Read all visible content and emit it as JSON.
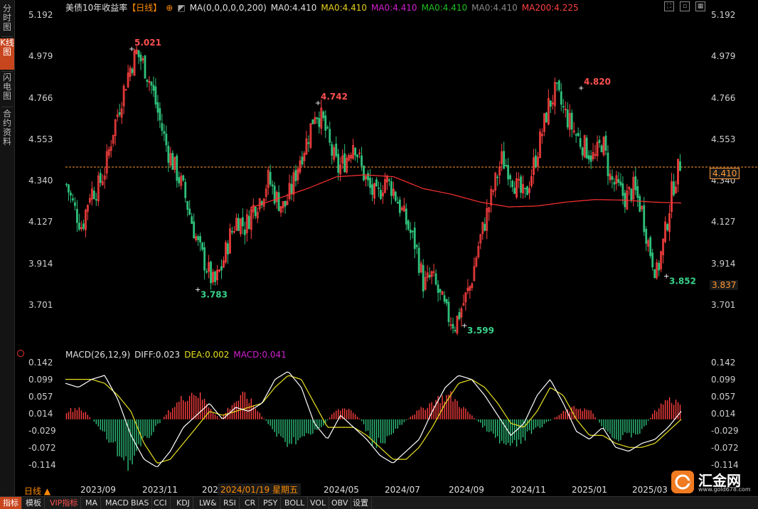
{
  "sidebar": {
    "tabs": [
      "分时图",
      "K线图",
      "闪电图",
      "合约资料"
    ],
    "active": 1
  },
  "header": {
    "title": "美债10年收益率",
    "period": "【日线】",
    "ma_params": "MA(0,0,0,0,0,200)",
    "ma_values": [
      {
        "label": "MA0:4.410",
        "color": "#e0e0e0"
      },
      {
        "label": "MA0:4.410",
        "color": "#e8d020"
      },
      {
        "label": "MA0:4.410",
        "color": "#d020d0"
      },
      {
        "label": "MA0:4.410",
        "color": "#20c020"
      },
      {
        "label": "MA0:4.410",
        "color": "#888888"
      },
      {
        "label": "MA200:4.225",
        "color": "#ff4040"
      }
    ]
  },
  "price_tags": {
    "current": "4.410",
    "cursor": "3.837"
  },
  "macd_header": {
    "params": "MACD(26,12,9)",
    "diff": "DIFF:0.023",
    "dea": "DEA:0.002",
    "macd": "MACD:0.041"
  },
  "cursor_date": "2024/01/19 星期五",
  "period_button": "日线 ▲",
  "tabs": [
    "指标",
    "模板",
    "VIP指标",
    "MA",
    "MACD",
    "BIAS",
    "CCI",
    "KDJ",
    "LW&",
    "RSI",
    "CR",
    "PSY",
    "BOLL",
    "VOL",
    "OBV",
    "设置"
  ],
  "logo": {
    "text": "汇金网",
    "url": "www.gold678.com"
  },
  "colors": {
    "up": "#ff4040",
    "down": "#2ec07a",
    "ma200": "#ff3030",
    "diff": "#ffffff",
    "dea": "#e8e020",
    "current_line": "#ff9933"
  },
  "chart_data": [
    {
      "type": "candlestick",
      "title": "美债10年收益率",
      "y_ticks": [
        "5.192",
        "4.979",
        "4.766",
        "4.553",
        "4.340",
        "4.127",
        "3.914",
        "3.701"
      ],
      "ylim": [
        3.59,
        5.2
      ],
      "x_ticks": [
        "2023/09",
        "2023/11",
        "2024/01",
        "2024/05",
        "2024/07",
        "2024/09",
        "2024/11",
        "2025/01",
        "2025/03"
      ],
      "annotations": [
        {
          "label": "5.021",
          "value": 5.021,
          "type": "high"
        },
        {
          "label": "3.783",
          "value": 3.783,
          "type": "low"
        },
        {
          "label": "4.742",
          "value": 4.742,
          "type": "high"
        },
        {
          "label": "3.599",
          "value": 3.599,
          "type": "low"
        },
        {
          "label": "4.820",
          "value": 4.82,
          "type": "high"
        },
        {
          "label": "3.852",
          "value": 3.852,
          "type": "low"
        }
      ],
      "close_path": [
        4.32,
        4.2,
        4.1,
        4.28,
        4.3,
        4.4,
        4.6,
        4.75,
        4.9,
        5.0,
        4.93,
        4.82,
        4.65,
        4.5,
        4.4,
        4.3,
        4.15,
        4.0,
        3.9,
        3.8,
        3.9,
        4.05,
        4.15,
        4.1,
        4.2,
        4.25,
        4.35,
        4.25,
        4.2,
        4.3,
        4.45,
        4.55,
        4.7,
        4.65,
        4.5,
        4.4,
        4.45,
        4.55,
        4.4,
        4.3,
        4.25,
        4.35,
        4.3,
        4.2,
        4.1,
        4.0,
        3.8,
        3.85,
        3.75,
        3.65,
        3.6,
        3.7,
        3.8,
        4.0,
        4.15,
        4.3,
        4.45,
        4.4,
        4.3,
        4.25,
        4.4,
        4.55,
        4.72,
        4.8,
        4.7,
        4.62,
        4.55,
        4.5,
        4.45,
        4.55,
        4.35,
        4.3,
        4.25,
        4.3,
        4.2,
        4.0,
        3.86,
        4.05,
        4.3,
        4.43
      ],
      "ma200_path": [
        4.2,
        4.25,
        4.3,
        4.36,
        4.37,
        4.36,
        4.3,
        4.27,
        4.23,
        4.205,
        4.21,
        4.23,
        4.243,
        4.24,
        4.23,
        4.225
      ],
      "current_value": 4.41
    },
    {
      "type": "macd",
      "y_ticks": [
        "0.142",
        "0.099",
        "0.057",
        "0.014",
        "-0.029",
        "-0.072",
        "-0.114"
      ],
      "ylim": [
        -0.13,
        0.15
      ],
      "diff": 0.023,
      "dea": 0.002,
      "macd": 0.041,
      "hist_path": [
        0.02,
        0.03,
        0.0,
        -0.04,
        -0.08,
        -0.11,
        -0.06,
        -0.02,
        0.02,
        0.05,
        0.07,
        0.04,
        0.0,
        0.04,
        0.06,
        0.02,
        -0.02,
        -0.06,
        -0.05,
        -0.04,
        -0.02,
        0.02,
        0.03,
        0.0,
        -0.06,
        -0.05,
        -0.02,
        0.01,
        0.03,
        0.05,
        0.06,
        0.03,
        0.0,
        -0.03,
        -0.06,
        -0.07,
        -0.04,
        -0.02,
        0.0,
        0.02,
        0.03,
        0.02,
        -0.02,
        -0.05,
        -0.04,
        -0.03,
        0.02,
        0.05,
        0.04
      ],
      "diff_path": [
        0.09,
        0.08,
        0.1,
        0.11,
        0.05,
        -0.04,
        -0.1,
        -0.12,
        -0.08,
        -0.02,
        0.01,
        0.04,
        0.0,
        0.03,
        0.02,
        0.04,
        0.1,
        0.12,
        0.08,
        -0.01,
        -0.05,
        0.01,
        -0.02,
        -0.05,
        -0.09,
        -0.11,
        -0.08,
        -0.05,
        0.02,
        0.08,
        0.11,
        0.1,
        0.06,
        0.01,
        -0.04,
        -0.01,
        0.06,
        0.1,
        0.04,
        -0.03,
        -0.05,
        -0.02,
        -0.07,
        -0.08,
        -0.06,
        -0.05,
        -0.02,
        0.02
      ],
      "dea_path": [
        0.1,
        0.1,
        0.1,
        0.09,
        0.06,
        0.02,
        -0.06,
        -0.11,
        -0.1,
        -0.06,
        -0.02,
        0.02,
        0.01,
        0.02,
        0.03,
        0.04,
        0.08,
        0.11,
        0.1,
        0.04,
        -0.02,
        -0.02,
        -0.02,
        -0.04,
        -0.07,
        -0.1,
        -0.1,
        -0.07,
        -0.02,
        0.04,
        0.09,
        0.1,
        0.08,
        0.04,
        -0.01,
        -0.02,
        0.02,
        0.08,
        0.06,
        0.0,
        -0.04,
        -0.04,
        -0.06,
        -0.07,
        -0.07,
        -0.06,
        -0.03,
        0.0
      ]
    }
  ]
}
